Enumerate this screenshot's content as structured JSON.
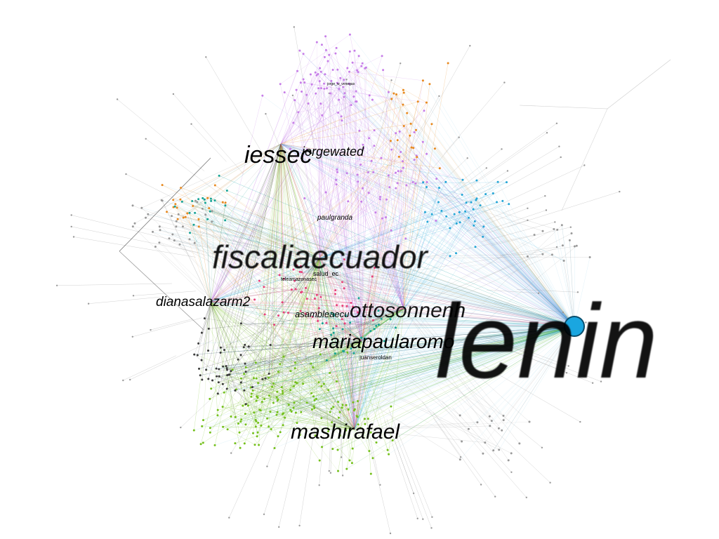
{
  "graph": {
    "node_labels": [
      {
        "id": "lenin",
        "text": "lenin"
      },
      {
        "id": "fiscaliaecuador",
        "text": "fiscaliaecuador"
      },
      {
        "id": "iessec",
        "text": "iessec"
      },
      {
        "id": "jorgewated",
        "text": "jorgewated"
      },
      {
        "id": "ottosonnenh",
        "text": "ottosonnenh"
      },
      {
        "id": "mariapaularomo",
        "text": "mariapaularomo"
      },
      {
        "id": "mashirafael",
        "text": "mashirafael"
      },
      {
        "id": "dianasalazarm2",
        "text": "dianasalazarm2"
      },
      {
        "id": "asambleaec",
        "text": "asambleaecu"
      },
      {
        "id": "paulgranda",
        "text": "paulgranda"
      },
      {
        "id": "salud_ec",
        "text": "salud_ec"
      },
      {
        "id": "teleamazonasec",
        "text": "teleamazonasec"
      },
      {
        "id": "juanseroldan",
        "text": "juanseroldan"
      },
      {
        "id": "small_top",
        "text": "jorge_w_venegas"
      }
    ],
    "colors": {
      "purple": "#c77ee8",
      "orange": "#e8891e",
      "blue": "#22a5d6",
      "green": "#74c01a",
      "teal": "#16a394",
      "gray": "#9a9a9a",
      "dark": "#3a3a3a",
      "pink": "#e8417a",
      "lenin_node": "#1aa6e0"
    }
  }
}
